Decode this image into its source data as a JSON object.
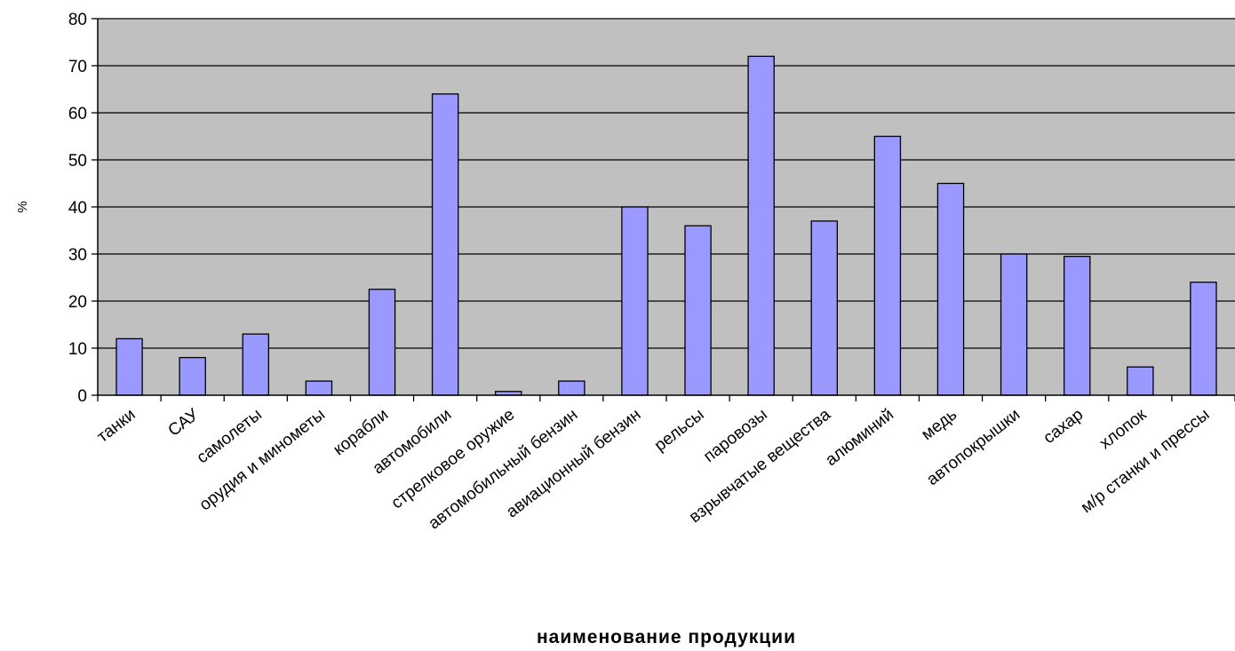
{
  "chart_data": {
    "type": "bar",
    "title": "",
    "xlabel": "наименование продукции",
    "ylabel": "%",
    "ylim": [
      0,
      80
    ],
    "yticks": [
      0,
      10,
      20,
      30,
      40,
      50,
      60,
      70,
      80
    ],
    "grid": true,
    "legend": "none",
    "categories": [
      "танки",
      "САУ",
      "самолеты",
      "орудия и минометы",
      "корабли",
      "автомобили",
      "стрелковое оружие",
      "автомобильный бензин",
      "авиационный бензин",
      "рельсы",
      "паровозы",
      "взрывчатые вещества",
      "алюминий",
      "медь",
      "автопокрышки",
      "сахар",
      "хлопок",
      "м/р станки и прессы"
    ],
    "values": [
      12,
      8,
      13,
      3,
      22.5,
      64,
      0.8,
      3,
      40,
      36,
      72,
      37,
      55,
      45,
      30,
      29.5,
      6,
      24
    ],
    "colors": {
      "plot_background": "#c0c0c0",
      "bar_fill": "#9999ff",
      "bar_stroke": "#000000",
      "gridline": "#000000"
    }
  }
}
